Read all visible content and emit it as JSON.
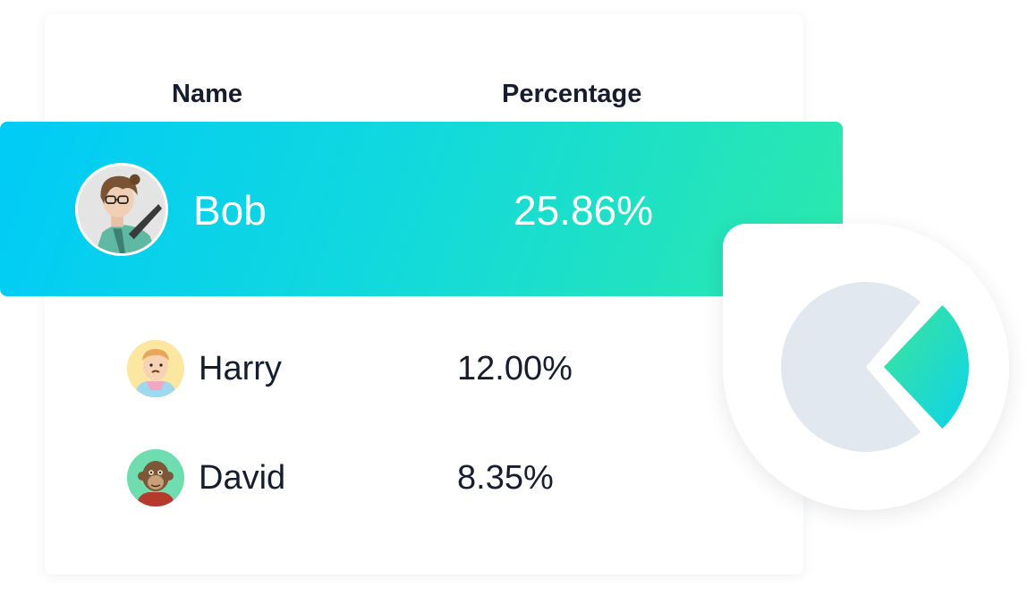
{
  "table": {
    "headers": {
      "name": "Name",
      "percentage": "Percentage"
    },
    "rows": [
      {
        "name": "Bob",
        "percentage": "25.86%",
        "highlighted": true,
        "avatar": "bob-avatar"
      },
      {
        "name": "Harry",
        "percentage": "12.00%",
        "highlighted": false,
        "avatar": "harry-avatar"
      },
      {
        "name": "David",
        "percentage": "8.35%",
        "highlighted": false,
        "avatar": "david-avatar"
      }
    ]
  },
  "colors": {
    "text_dark": "#161d2e",
    "highlight_gradient_start": "#00cbf7",
    "highlight_gradient_end": "#2ce9ab",
    "pie_base": "#e2e8f0",
    "slice_gradient_start": "#3ee59b",
    "slice_gradient_end": "#0dd3e8"
  },
  "chart_data": {
    "type": "pie",
    "values": [
      25.86,
      74.14
    ],
    "highlighted_index": 0
  }
}
